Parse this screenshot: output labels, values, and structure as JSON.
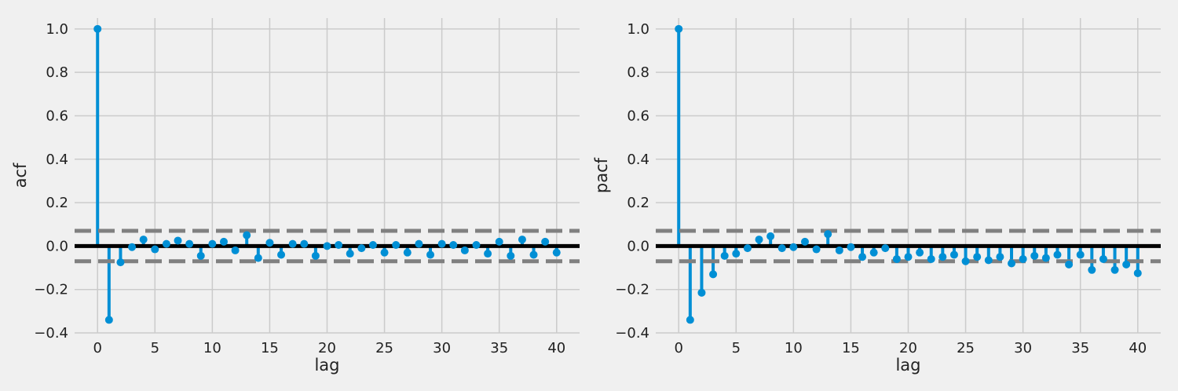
{
  "colors": {
    "background": "#f0f0f0",
    "grid": "#cbcbcb",
    "stem": "#008fd5",
    "zero_line": "#000000",
    "confidence": "#808080"
  },
  "chart_data": [
    {
      "type": "stem",
      "title": "",
      "xlabel": "lag",
      "ylabel": "acf",
      "xlim": [
        -2,
        42
      ],
      "ylim": [
        -0.4,
        1.05
      ],
      "xticks": [
        0,
        5,
        10,
        15,
        20,
        25,
        30,
        35,
        40
      ],
      "yticks": [
        -0.4,
        -0.2,
        0.0,
        0.2,
        0.4,
        0.6,
        0.8,
        1.0
      ],
      "ytick_labels": [
        "−0.4",
        "−0.2",
        "0.0",
        "0.2",
        "0.4",
        "0.6",
        "0.8",
        "1.0"
      ],
      "grid": true,
      "confidence_band": [
        -0.07,
        0.07
      ],
      "x": [
        0,
        1,
        2,
        3,
        4,
        5,
        6,
        7,
        8,
        9,
        10,
        11,
        12,
        13,
        14,
        15,
        16,
        17,
        18,
        19,
        20,
        21,
        22,
        23,
        24,
        25,
        26,
        27,
        28,
        29,
        30,
        31,
        32,
        33,
        34,
        35,
        36,
        37,
        38,
        39,
        40
      ],
      "values": [
        1.0,
        -0.34,
        -0.075,
        -0.005,
        0.03,
        -0.015,
        0.01,
        0.025,
        0.01,
        -0.045,
        0.01,
        0.02,
        -0.02,
        0.05,
        -0.055,
        0.015,
        -0.04,
        0.01,
        0.01,
        -0.045,
        0.0,
        0.005,
        -0.035,
        -0.01,
        0.005,
        -0.03,
        0.005,
        -0.03,
        0.01,
        -0.04,
        0.01,
        0.005,
        -0.02,
        0.005,
        -0.035,
        0.02,
        -0.045,
        0.03,
        -0.04,
        0.02,
        -0.03
      ]
    },
    {
      "type": "stem",
      "title": "",
      "xlabel": "lag",
      "ylabel": "pacf",
      "xlim": [
        -2,
        42
      ],
      "ylim": [
        -0.4,
        1.05
      ],
      "xticks": [
        0,
        5,
        10,
        15,
        20,
        25,
        30,
        35,
        40
      ],
      "yticks": [
        -0.4,
        -0.2,
        0.0,
        0.2,
        0.4,
        0.6,
        0.8,
        1.0
      ],
      "ytick_labels": [
        "−0.4",
        "−0.2",
        "0.0",
        "0.2",
        "0.4",
        "0.6",
        "0.8",
        "1.0"
      ],
      "grid": true,
      "confidence_band": [
        -0.07,
        0.07
      ],
      "x": [
        0,
        1,
        2,
        3,
        4,
        5,
        6,
        7,
        8,
        9,
        10,
        11,
        12,
        13,
        14,
        15,
        16,
        17,
        18,
        19,
        20,
        21,
        22,
        23,
        24,
        25,
        26,
        27,
        28,
        29,
        30,
        31,
        32,
        33,
        34,
        35,
        36,
        37,
        38,
        39,
        40
      ],
      "values": [
        1.0,
        -0.34,
        -0.215,
        -0.13,
        -0.045,
        -0.035,
        -0.01,
        0.03,
        0.045,
        -0.01,
        -0.005,
        0.02,
        -0.015,
        0.055,
        -0.02,
        -0.005,
        -0.05,
        -0.03,
        -0.01,
        -0.06,
        -0.05,
        -0.03,
        -0.06,
        -0.05,
        -0.04,
        -0.07,
        -0.05,
        -0.065,
        -0.05,
        -0.08,
        -0.06,
        -0.045,
        -0.055,
        -0.04,
        -0.085,
        -0.04,
        -0.11,
        -0.06,
        -0.11,
        -0.085,
        -0.125
      ]
    }
  ]
}
